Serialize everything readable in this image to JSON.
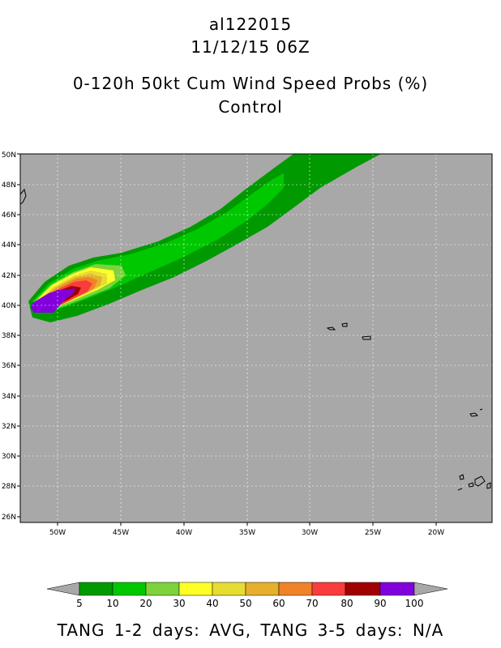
{
  "header": {
    "storm_id": "al122015",
    "datetime": "11/12/15 06Z",
    "product": "0-120h 50kt Cum Wind Speed Probs (%)",
    "run": "Control"
  },
  "map": {
    "lat_labels": [
      "50N",
      "48N",
      "46N",
      "44N",
      "42N",
      "40N",
      "38N",
      "36N",
      "34N",
      "32N",
      "30N",
      "28N",
      "26N"
    ],
    "lat_values": [
      50,
      48,
      46,
      44,
      42,
      40,
      38,
      36,
      34,
      32,
      30,
      28,
      26
    ],
    "lon_labels": [
      "50W",
      "45W",
      "40W",
      "35W",
      "30W",
      "25W",
      "20W"
    ],
    "lon_values": [
      -50,
      -45,
      -40,
      -35,
      -30,
      -25,
      -20
    ],
    "colors": {
      "ocean": "#a8a8a8",
      "5": "#009a00",
      "10": "#00c800",
      "20": "#7ed23c",
      "30": "#ffff28",
      "40": "#e6dc32",
      "50": "#e6af2d",
      "60": "#f08228",
      "70": "#fa3c3c",
      "80": "#a00000",
      "90": "#8200dc"
    }
  },
  "colorbar": {
    "labels": [
      "5",
      "10",
      "20",
      "30",
      "40",
      "50",
      "60",
      "70",
      "80",
      "90",
      "100"
    ],
    "colors": [
      "#009a00",
      "#00c800",
      "#7ed23c",
      "#ffff28",
      "#e6dc32",
      "#e6af2d",
      "#f08228",
      "#fa3c3c",
      "#a00000",
      "#8200dc"
    ]
  },
  "footer": {
    "text": "TANG 1-2 days:  AVG,   TANG 3-5 days:  N/A"
  }
}
